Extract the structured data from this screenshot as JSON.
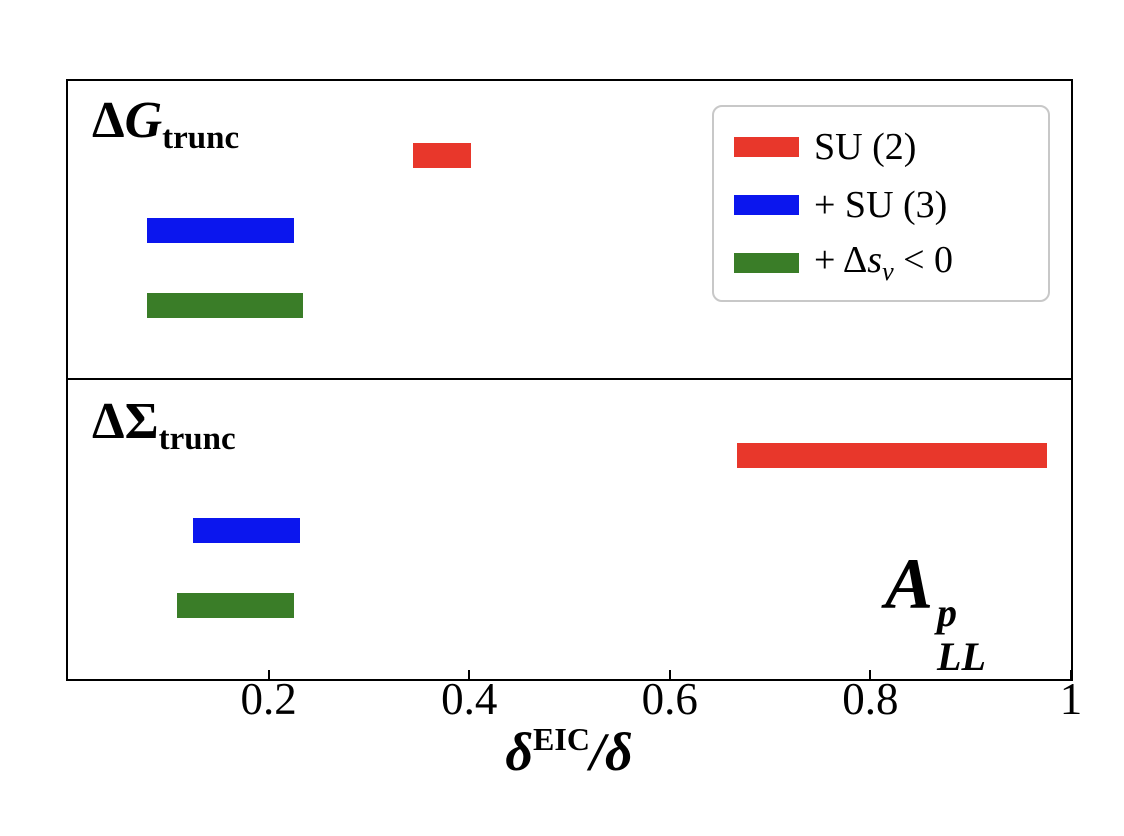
{
  "chart_data": {
    "type": "bar",
    "orientation": "horizontal-interval",
    "title": "",
    "xlabel": "δ^EIC/δ",
    "xlabel_parts": {
      "base": "δ",
      "sup": "EIC",
      "post": "/δ"
    },
    "xlim": [
      0,
      1
    ],
    "grid": false,
    "xticks": [
      {
        "value": 0.2,
        "label": "0.2"
      },
      {
        "value": 0.4,
        "label": "0.4"
      },
      {
        "value": 0.6,
        "label": "0.6"
      },
      {
        "value": 0.8,
        "label": "0.8"
      },
      {
        "value": 1.0,
        "label": "1"
      }
    ],
    "legend": {
      "position": "upper right",
      "entries": [
        {
          "label": "SU (2)",
          "color": "#e8372b",
          "pre": "SU (2)",
          "sym": "",
          "sub": "",
          "post": ""
        },
        {
          "label": "+ SU (3)",
          "color": "#0b16ee",
          "pre": "+ SU (3)",
          "sym": "",
          "sub": "",
          "post": ""
        },
        {
          "label": "+ Δs_v < 0",
          "color": "#3a7d28",
          "pre": "+ Δ",
          "sym": "s",
          "sub": "v",
          "post": " < 0"
        }
      ]
    },
    "panels": [
      {
        "label": "ΔG_trunc",
        "label_parts": {
          "delta": "Δ",
          "symbol": "G",
          "symbol_italic": true,
          "sub": "trunc"
        },
        "bars": [
          {
            "series": "SU (2)",
            "x_start": 0.344,
            "x_end": 0.402,
            "color": "#e8372b"
          },
          {
            "series": "+ SU (3)",
            "x_start": 0.079,
            "x_end": 0.225,
            "color": "#0b16ee"
          },
          {
            "series": "+ Δs_v < 0",
            "x_start": 0.079,
            "x_end": 0.234,
            "color": "#3a7d28"
          }
        ]
      },
      {
        "label": "ΔΣ_trunc",
        "label_parts": {
          "delta": "Δ",
          "symbol": "Σ",
          "symbol_italic": false,
          "sub": "trunc"
        },
        "corner_label": "A^p_LL",
        "corner_label_parts": {
          "base": "A",
          "sup": "p",
          "sub": "LL"
        },
        "bars": [
          {
            "series": "SU (2)",
            "x_start": 0.667,
            "x_end": 0.976,
            "color": "#e8372b"
          },
          {
            "series": "+ SU (3)",
            "x_start": 0.125,
            "x_end": 0.231,
            "color": "#0b16ee"
          },
          {
            "series": "+ Δs_v < 0",
            "x_start": 0.109,
            "x_end": 0.225,
            "color": "#3a7d28"
          }
        ]
      }
    ],
    "colors": {
      "spine": "#000000",
      "background": "#ffffff",
      "legend_border": "#c8c8c8"
    }
  }
}
